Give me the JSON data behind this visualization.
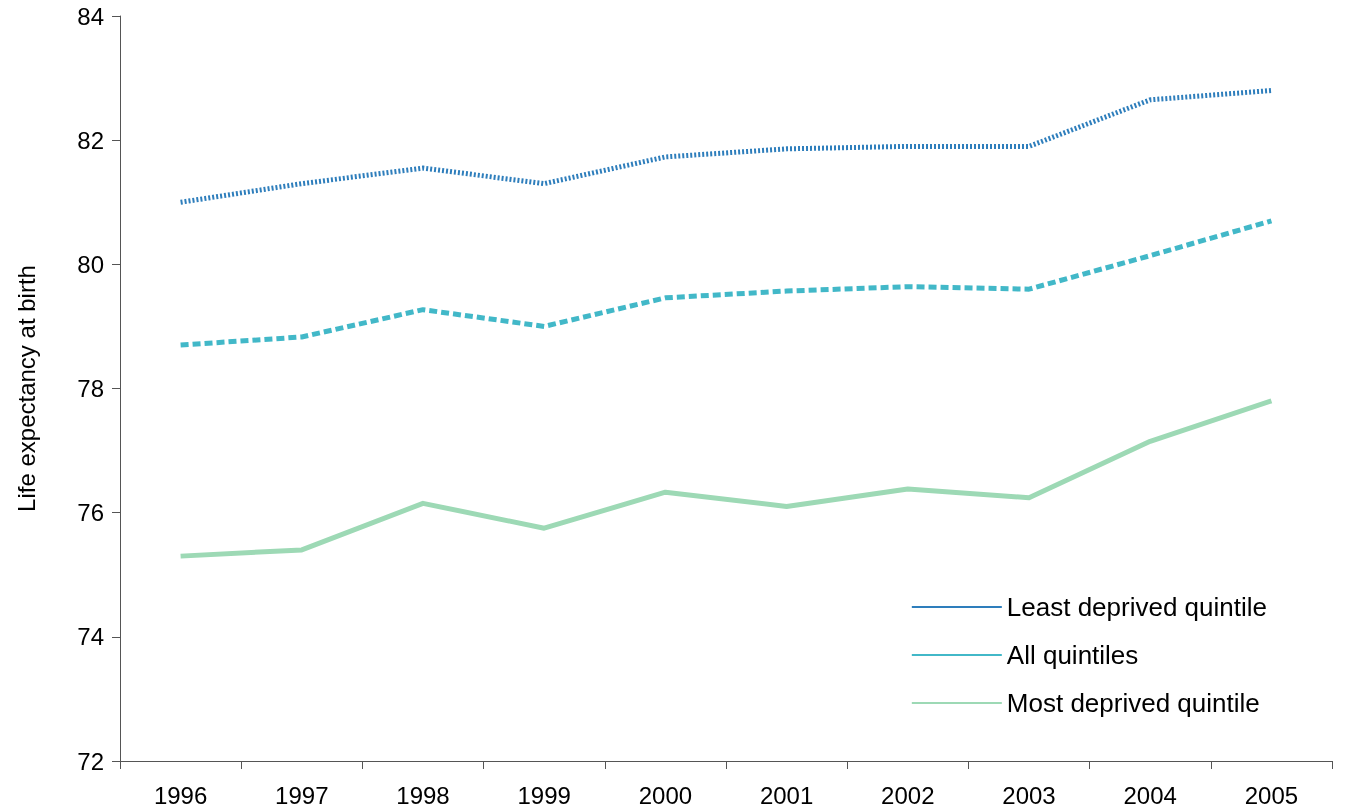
{
  "chart_data": {
    "type": "line",
    "ylabel": "Life expectancy at birth",
    "categories": [
      "1996",
      "1997",
      "1998",
      "1999",
      "2000",
      "2001",
      "2002",
      "2003",
      "2004",
      "2005"
    ],
    "series": [
      {
        "name": "Least deprived quintile",
        "color": "#2e7ebc",
        "line_style": "dotted",
        "values": [
          81.0,
          81.3,
          81.55,
          81.3,
          81.73,
          81.86,
          81.9,
          81.9,
          82.65,
          82.8
        ]
      },
      {
        "name": "All quintiles",
        "color": "#42b8c8",
        "line_style": "dashed",
        "values": [
          78.7,
          78.83,
          79.27,
          79.0,
          79.46,
          79.57,
          79.64,
          79.6,
          80.14,
          80.7
        ]
      },
      {
        "name": "Most deprived quintile",
        "color": "#9dd9b5",
        "line_style": "solid",
        "values": [
          75.3,
          75.4,
          76.15,
          75.75,
          76.33,
          76.1,
          76.38,
          76.24,
          77.15,
          77.8
        ]
      }
    ],
    "ylim": [
      72,
      84
    ],
    "yticks": [
      72,
      74,
      76,
      78,
      80,
      82,
      84
    ],
    "grid": false,
    "legend": "bottom right",
    "marker": "none"
  }
}
